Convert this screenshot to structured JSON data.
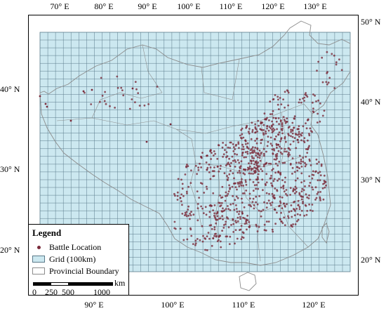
{
  "map": {
    "colors": {
      "grid_fill": "#cce8f0",
      "grid_line": "#5a7a8a",
      "boundary": "#8c8c8c",
      "battle_dot": "#7a2a3a"
    },
    "lon_labels_top": [
      "70° E",
      "80° E",
      "90° E",
      "100° E",
      "110° E",
      "120° E",
      "130° E"
    ],
    "lon_labels_bottom": [
      "90° E",
      "100° E",
      "110° E",
      "120° E"
    ],
    "lat_labels_left": [
      "40° N",
      "30° N",
      "20° N"
    ],
    "lat_labels_right": [
      "50° N",
      "40° N",
      "30° N",
      "20° N"
    ]
  },
  "legend": {
    "title": "Legend",
    "items": [
      {
        "label": "Battle Location",
        "symbol": "dot"
      },
      {
        "label": "Grid (100km)",
        "symbol": "swatch"
      },
      {
        "label": "Provincial Boundary",
        "symbol": "outline"
      }
    ],
    "scale": {
      "labels": [
        "0",
        "250",
        "500",
        "1000"
      ],
      "unit": "km"
    }
  }
}
